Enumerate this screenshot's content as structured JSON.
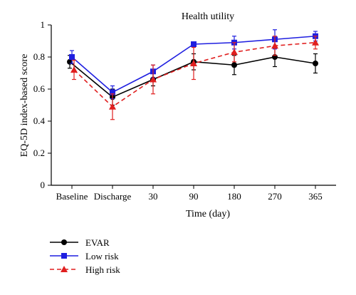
{
  "chart_data": {
    "type": "line",
    "title": "Health utility",
    "xlabel": "Time (day)",
    "ylabel": "EQ-5D index-based score",
    "categories": [
      "Baseline",
      "Discharge",
      "30",
      "90",
      "180",
      "270",
      "365"
    ],
    "ylim": [
      0,
      1
    ],
    "yticks": [
      "0",
      "0.2",
      "0.4",
      "0.6",
      "0.8",
      "1"
    ],
    "grid": false,
    "legend_position": "bottom-left",
    "series": [
      {
        "name": "EVAR",
        "color": "#000000",
        "marker": "circle",
        "line_style": "solid",
        "values": [
          0.77,
          0.55,
          0.66,
          0.77,
          0.75,
          0.8,
          0.76
        ],
        "error": [
          0.04,
          0.05,
          0.04,
          0.05,
          0.06,
          0.06,
          0.06
        ]
      },
      {
        "name": "Low risk",
        "color": "#1f1fe0",
        "marker": "square",
        "line_style": "solid",
        "values": [
          0.8,
          0.58,
          0.71,
          0.88,
          0.89,
          0.91,
          0.93
        ],
        "error": [
          0.04,
          0.04,
          0.04,
          0.01,
          0.04,
          0.06,
          0.03
        ]
      },
      {
        "name": "High risk",
        "color": "#e01f1f",
        "marker": "triangle",
        "line_style": "dashed",
        "values": [
          0.72,
          0.49,
          0.66,
          0.76,
          0.83,
          0.87,
          0.89
        ],
        "error": [
          0.06,
          0.08,
          0.09,
          0.1,
          0.06,
          0.06,
          0.04
        ]
      }
    ]
  }
}
